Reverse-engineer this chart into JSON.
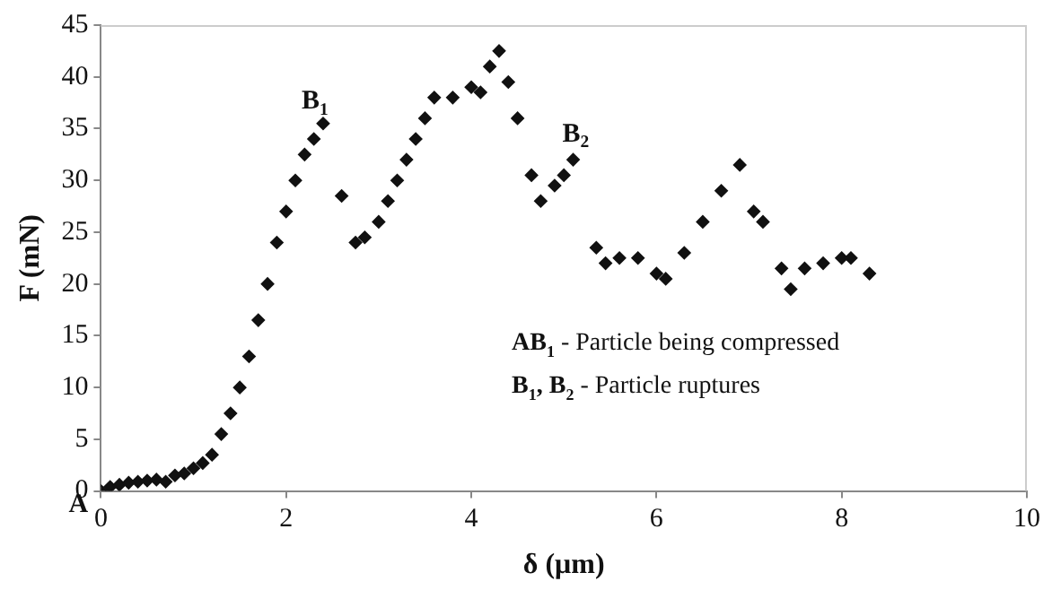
{
  "chart_data": {
    "type": "scatter",
    "xlabel": "δ (μm)",
    "ylabel": "F (mN)",
    "xlim": [
      0,
      10
    ],
    "xticks": [
      0,
      2,
      4,
      6,
      8,
      10
    ],
    "ylim": [
      0,
      45
    ],
    "yticks": [
      0,
      5,
      10,
      15,
      20,
      25,
      30,
      35,
      40,
      45
    ],
    "grid": false,
    "legend": false,
    "marker": "diamond",
    "series": [
      {
        "color": "#111111",
        "x": [
          0,
          0.1,
          0.2,
          0.3,
          0.4,
          0.5,
          0.6,
          0.7,
          0.8,
          0.9,
          1.0,
          1.1,
          1.2,
          1.3,
          1.4,
          1.5,
          1.6,
          1.7,
          1.8,
          1.9,
          2.0,
          2.1,
          2.2,
          2.3,
          2.4,
          2.6,
          2.75,
          2.85,
          3.0,
          3.1,
          3.2,
          3.3,
          3.4,
          3.5,
          3.6,
          3.8,
          4.0,
          4.1,
          4.2,
          4.3,
          4.4,
          4.5,
          4.65,
          4.75,
          4.9,
          5.0,
          5.1,
          5.35,
          5.45,
          5.6,
          5.8,
          6.0,
          6.1,
          6.3,
          6.5,
          6.7,
          6.9,
          7.05,
          7.15,
          7.35,
          7.45,
          7.6,
          7.8,
          8.0,
          8.1,
          8.3
        ],
        "values": [
          0,
          0.4,
          0.6,
          0.8,
          0.9,
          1.0,
          1.1,
          0.9,
          1.5,
          1.7,
          2.2,
          2.7,
          3.5,
          5.5,
          7.5,
          10,
          13,
          16.5,
          20,
          24,
          27,
          30,
          32.5,
          34,
          35.5,
          28.5,
          24,
          24.5,
          26,
          28,
          30,
          32,
          34,
          36,
          38,
          38,
          39,
          38.5,
          41,
          42.5,
          39.5,
          36,
          30.5,
          28,
          29.5,
          30.5,
          32,
          23.5,
          22,
          22.5,
          22.5,
          21,
          20.5,
          23,
          26,
          29,
          31.5,
          27,
          26,
          21.5,
          19.5,
          21.5,
          22,
          22.5,
          22.5,
          21
        ]
      }
    ],
    "annotations": [
      {
        "text": "A",
        "x": 0,
        "y": 0
      },
      {
        "text": "B$_{1}$",
        "x": 2.4,
        "y": 35.5
      },
      {
        "text": "B$_{2}$",
        "x": 5.1,
        "y": 32
      },
      "AB$_{1}$ - Particle being compressed",
      "B$_{1}$, B$_{2}$ - Particle ruptures"
    ]
  }
}
